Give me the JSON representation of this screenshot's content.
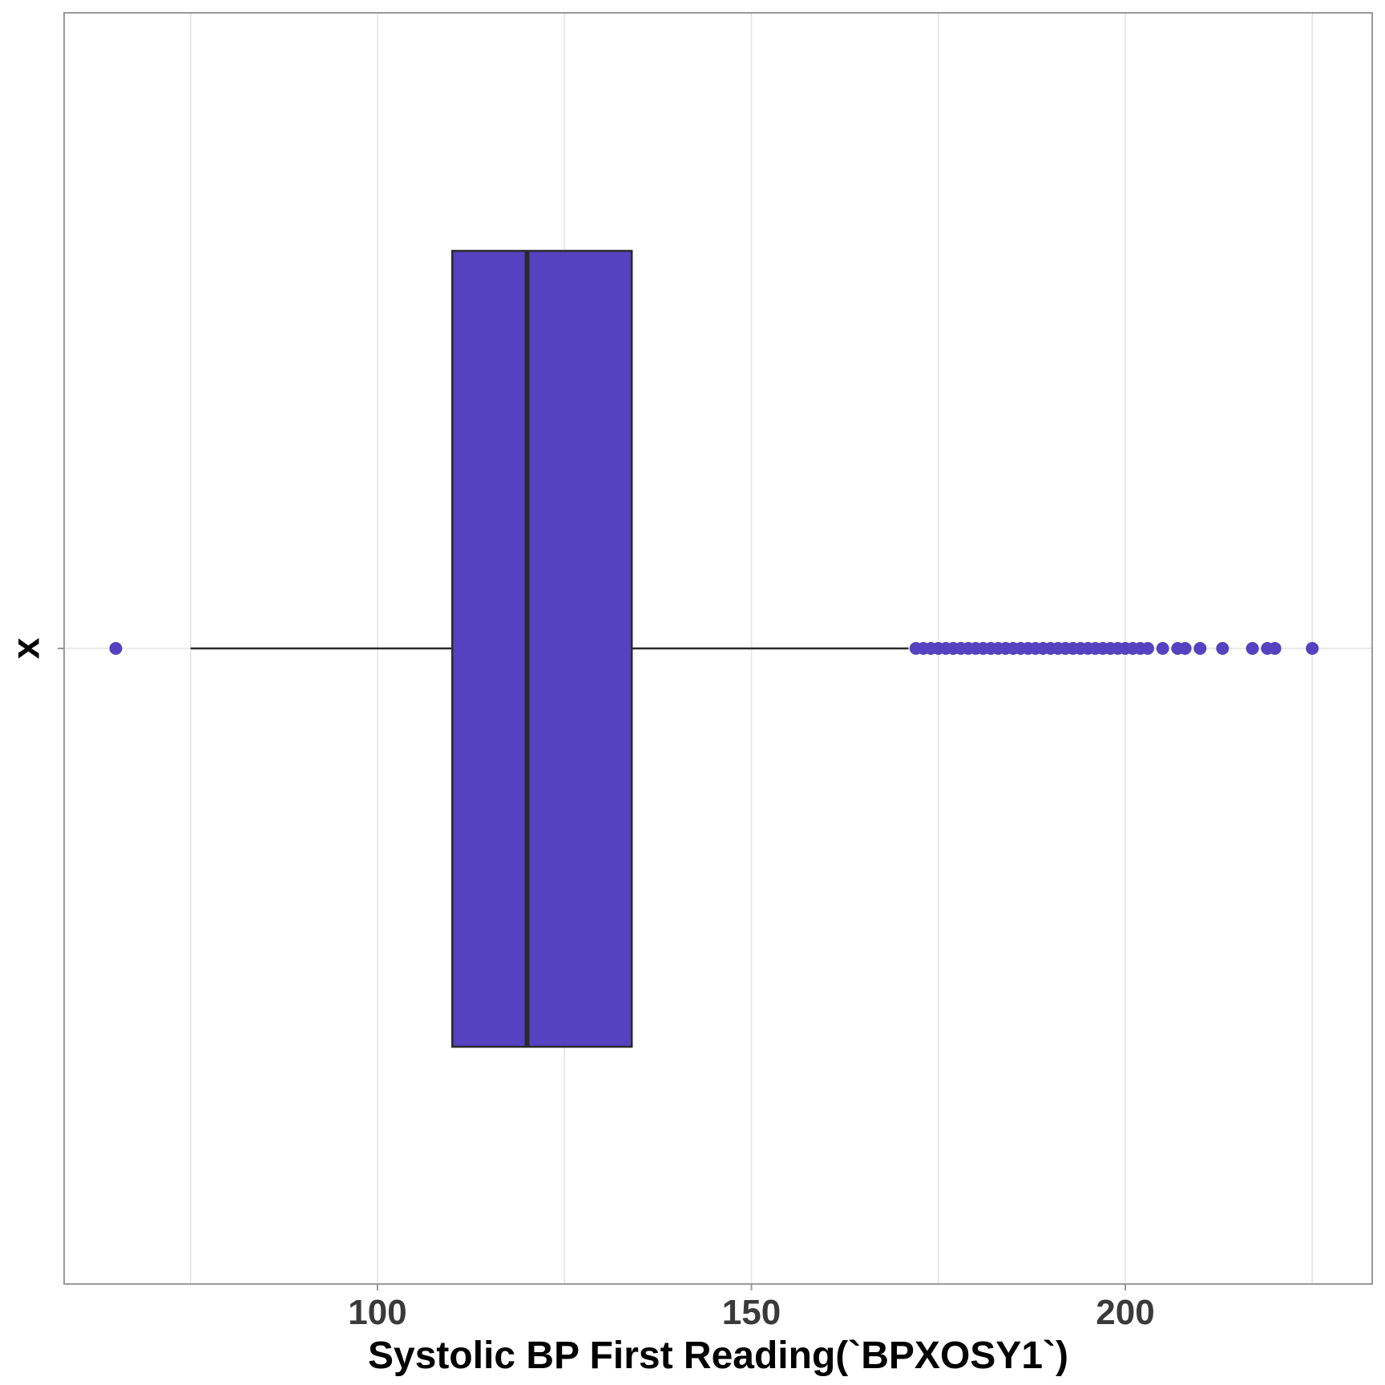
{
  "chart_data": {
    "type": "boxplot",
    "orientation": "horizontal",
    "xlabel": "Systolic BP First Reading(`BPXOSY1`)",
    "ylabel": "x",
    "xlim": [
      60,
      224
    ],
    "x_ticks": [
      100,
      150,
      200
    ],
    "x_minor_gridlines": [
      75,
      125,
      175,
      225
    ],
    "categories": [
      "x"
    ],
    "grid": true,
    "fill_color": "#5442c0",
    "line_color": "#2b2b2b",
    "outlier_color": "#5442c0",
    "box": {
      "whisker_low": 75,
      "q1": 110,
      "median": 120,
      "q3": 134,
      "whisker_high": 171
    },
    "outliers": [
      65,
      172,
      173,
      174,
      175,
      176,
      177,
      178,
      179,
      180,
      181,
      182,
      183,
      184,
      185,
      186,
      187,
      188,
      189,
      190,
      191,
      192,
      193,
      194,
      195,
      196,
      197,
      198,
      199,
      200,
      201,
      202,
      203,
      205,
      207,
      208,
      210,
      213,
      217,
      219,
      220,
      225
    ]
  }
}
